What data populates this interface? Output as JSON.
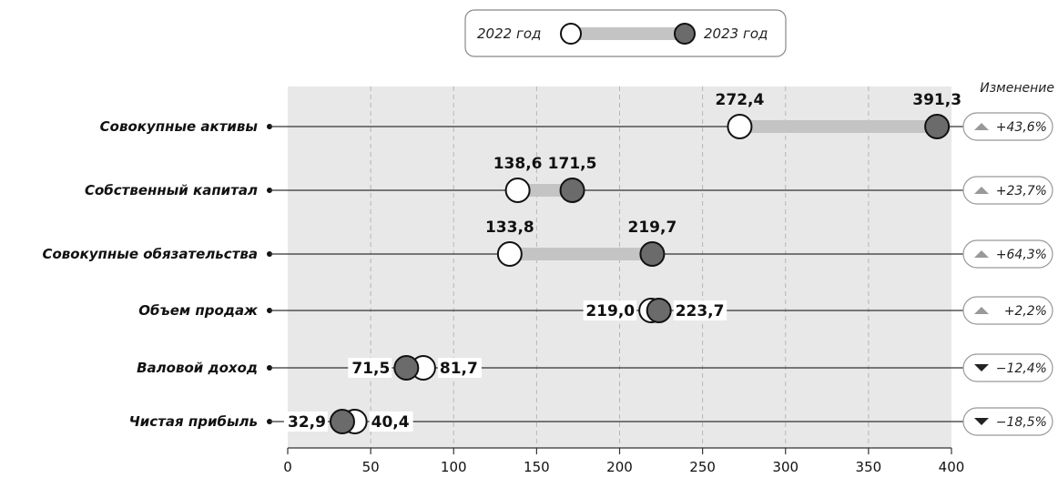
{
  "legend": {
    "label_2022": "2022 год",
    "label_2023": "2023 год"
  },
  "change_header": "Изменение",
  "colors": {
    "marker_2022": "#ffffff",
    "marker_2023": "#6b6b6b",
    "range_bar": "#c4c4c4",
    "plot_bg": "#e8e8e8",
    "line": "#333333",
    "arrow": "#999999",
    "arrow_down": "#222222"
  },
  "chart_data": {
    "type": "dumbbell",
    "xlim": [
      0,
      400
    ],
    "xticks": [
      "0",
      "50",
      "100",
      "150",
      "200",
      "250",
      "300",
      "350",
      "400"
    ],
    "grid": "vertical-dashed",
    "series": [
      {
        "name": "2022 год"
      },
      {
        "name": "2023 год"
      }
    ],
    "rows": [
      {
        "category": "Совокупные активы",
        "v2022": 272.4,
        "v2023": 391.3,
        "label_2022": "272,4",
        "label_2023": "391,3",
        "change": "+43,6%",
        "direction": "up"
      },
      {
        "category": "Собственный капитал",
        "v2022": 138.6,
        "v2023": 171.5,
        "label_2022": "138,6",
        "label_2023": "171,5",
        "change": "+23,7%",
        "direction": "up"
      },
      {
        "category": "Совокупные обязательства",
        "v2022": 133.8,
        "v2023": 219.7,
        "label_2022": "133,8",
        "label_2023": "219,7",
        "change": "+64,3%",
        "direction": "up"
      },
      {
        "category": "Объем продаж",
        "v2022": 219.0,
        "v2023": 223.7,
        "label_2022": "219,0",
        "label_2023": "223,7",
        "change": "+2,2%",
        "direction": "up"
      },
      {
        "category": "Валовой доход",
        "v2022": 81.7,
        "v2023": 71.5,
        "label_2022": "81,7",
        "label_2023": "71,5",
        "change": "−12,4%",
        "direction": "down"
      },
      {
        "category": "Чистая прибыль",
        "v2022": 40.4,
        "v2023": 32.9,
        "label_2022": "40,4",
        "label_2023": "32,9",
        "change": "−18,5%",
        "direction": "down"
      }
    ]
  }
}
